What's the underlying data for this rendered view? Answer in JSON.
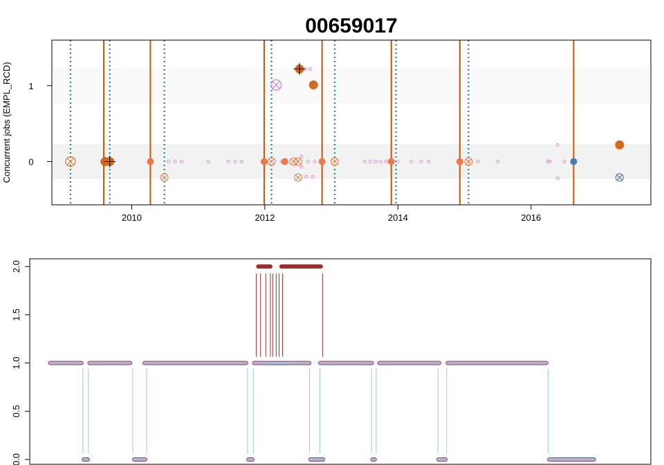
{
  "chart_data": [
    {
      "type": "scatter",
      "title": "00659017",
      "xlabel": "",
      "ylabel": "Concurrent jobs (EMPL_RCD)",
      "xlim": [
        2008.8,
        2017.8
      ],
      "ylim": [
        -0.57,
        1.6
      ],
      "x_ticks": [
        2010,
        2012,
        2014,
        2016
      ],
      "x_tick_labels": [
        "2010",
        "2012",
        "2014",
        "2016"
      ],
      "y_ticks": [
        0,
        1
      ],
      "y_tick_labels": [
        "0",
        "1"
      ],
      "bands": [
        {
          "y_from": -0.23,
          "y_to": 0.23,
          "color": "#f2f2f2"
        },
        {
          "y_from": 0.77,
          "y_to": 1.23,
          "color": "#f9f9f9"
        }
      ],
      "solid_lines": {
        "color": "#cc5500",
        "x": [
          2009.58,
          2010.28,
          2011.99,
          2012.86,
          2013.9,
          2014.93,
          2016.64
        ]
      },
      "dotted_lines": {
        "color": "#1a8a7a",
        "x": [
          2009.08,
          2009.67,
          2010.49,
          2012.1,
          2013.05,
          2013.97,
          2015.06
        ]
      },
      "series": [
        {
          "kind": "tiny_pink",
          "color": "#ee88dd",
          "points": [
            [
              2010.55,
              0
            ],
            [
              2010.65,
              0
            ],
            [
              2010.75,
              0
            ],
            [
              2011.15,
              0
            ],
            [
              2011.45,
              0
            ],
            [
              2011.55,
              0
            ],
            [
              2011.65,
              0
            ],
            [
              2012.25,
              0
            ],
            [
              2012.55,
              0.07
            ],
            [
              2012.55,
              -0.07
            ],
            [
              2012.65,
              0
            ],
            [
              2012.75,
              0
            ],
            [
              2012.6,
              1.22
            ],
            [
              2012.68,
              1.22
            ],
            [
              2012.62,
              -0.2
            ],
            [
              2012.72,
              -0.2
            ],
            [
              2013.5,
              0
            ],
            [
              2013.58,
              0
            ],
            [
              2013.66,
              0
            ],
            [
              2013.74,
              0
            ],
            [
              2013.82,
              0
            ],
            [
              2014.0,
              0
            ],
            [
              2014.2,
              0
            ],
            [
              2014.35,
              0
            ],
            [
              2014.46,
              0
            ],
            [
              2015.2,
              0
            ],
            [
              2015.5,
              0
            ],
            [
              2016.25,
              0
            ],
            [
              2016.28,
              0
            ],
            [
              2016.4,
              0.22
            ],
            [
              2016.4,
              -0.22
            ],
            [
              2016.5,
              0
            ]
          ]
        },
        {
          "kind": "filled_salmon",
          "color": "#f07848",
          "points": [
            [
              2009.58,
              0
            ],
            [
              2010.28,
              0
            ],
            [
              2011.99,
              0
            ],
            [
              2012.3,
              0
            ],
            [
              2012.86,
              0
            ],
            [
              2013.9,
              0
            ],
            [
              2014.93,
              0
            ]
          ]
        },
        {
          "kind": "crossed_salmon",
          "color": "#f07848",
          "points": [
            [
              2010.49,
              -0.21
            ],
            [
              2012.1,
              0
            ],
            [
              2012.43,
              0
            ],
            [
              2012.5,
              0
            ],
            [
              2012.5,
              -0.21
            ],
            [
              2013.05,
              0
            ],
            [
              2015.06,
              0
            ]
          ]
        },
        {
          "kind": "crossed_orange",
          "color": "#d96a10",
          "points": [
            [
              2009.08,
              0
            ]
          ]
        },
        {
          "kind": "filled_dark_orange",
          "color": "#d2691e",
          "points": [
            [
              2009.6,
              0
            ],
            [
              2012.73,
              1.01
            ],
            [
              2017.33,
              0.22
            ]
          ]
        },
        {
          "kind": "plus_dark",
          "color": "#d2691e",
          "points": [
            [
              2009.67,
              0
            ],
            [
              2012.52,
              1.22
            ]
          ]
        },
        {
          "kind": "violet_cross",
          "color": "#cc66ee",
          "points": [
            [
              2012.17,
              1.01
            ]
          ]
        },
        {
          "kind": "filled_blue",
          "color": "#4a7ab0",
          "points": [
            [
              2016.64,
              0
            ]
          ]
        },
        {
          "kind": "crossed_blue",
          "color": "#3a6a9a",
          "points": [
            [
              2017.33,
              -0.21
            ]
          ]
        }
      ]
    },
    {
      "type": "line",
      "title": "",
      "xlabel": "",
      "ylabel": "",
      "xlim": [
        0,
        100
      ],
      "ylim": [
        -0.05,
        2.08
      ],
      "y_ticks": [
        0,
        0.5,
        1,
        1.5,
        2
      ],
      "y_tick_labels": [
        "0.0",
        "0.5",
        "1.0",
        "1.5",
        "2.0"
      ],
      "segments_level_1": [
        [
          0,
          6
        ],
        [
          6.8,
          14.4
        ],
        [
          16.3,
          34.4
        ],
        [
          35.2,
          45.3
        ],
        [
          46.6,
          56.1
        ],
        [
          56.8,
          67.7
        ],
        [
          68.6,
          86.2
        ]
      ],
      "highlight_level_1": [
        [
          37.3,
          42.6
        ]
      ],
      "segments_level_2": [
        [
          35.9,
          38.6
        ],
        [
          39.9,
          47.3
        ]
      ],
      "segments_level_0": [
        [
          5.8,
          7.1
        ],
        [
          14.5,
          17.0
        ],
        [
          34.2,
          35.5
        ],
        [
          44.9,
          47.7
        ],
        [
          55.6,
          56.6
        ],
        [
          67.0,
          68.8
        ],
        [
          86.1,
          94.4
        ]
      ],
      "down_drops": [
        5.95,
        6.9,
        14.55,
        16.95,
        34.35,
        35.35,
        45.05,
        46.85,
        55.75,
        56.55,
        67.2,
        68.7,
        86.2
      ],
      "up_drops": [
        35.85,
        36.6,
        37.5,
        38.3,
        38.7,
        39.3,
        39.8,
        40.4,
        47.3
      ],
      "colors": {
        "bar_fill": "#a8bad3",
        "bar_edge": "#b0315a",
        "level2": "#a52a2a",
        "drop_down": "#8dcfe0",
        "drop_up": "#a52a2a",
        "highlight": "#87ceeb"
      }
    }
  ]
}
